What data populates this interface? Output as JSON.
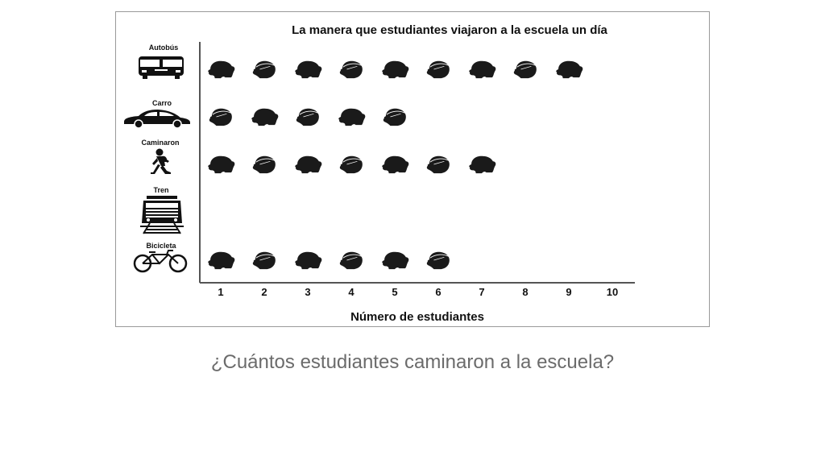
{
  "question": "¿Cuántos estudiantes caminaron a la escuela?",
  "chart_data": {
    "type": "bar",
    "title": "La manera que estudiantes viajaron a la escuela un día",
    "xlabel": "Número de estudiantes",
    "ylabel": "",
    "categories": [
      "Autobús",
      "Carro",
      "Caminaron",
      "Tren",
      "Bicicleta"
    ],
    "category_icons": [
      "bus-icon",
      "car-icon",
      "walking-person-icon",
      "train-icon",
      "bicycle-icon"
    ],
    "values": [
      9,
      5,
      7,
      0,
      6
    ],
    "x_ticks": [
      "1",
      "2",
      "3",
      "4",
      "5",
      "6",
      "7",
      "8",
      "9",
      "10"
    ],
    "xlim": [
      0,
      10
    ],
    "grid": false,
    "mark_style": "student head silhouettes (pictograph)",
    "colors": {
      "mark": "#1a1a1a",
      "axis": "#555555",
      "frame": "#9a9a9a",
      "question_text": "#6b6b6b"
    }
  }
}
